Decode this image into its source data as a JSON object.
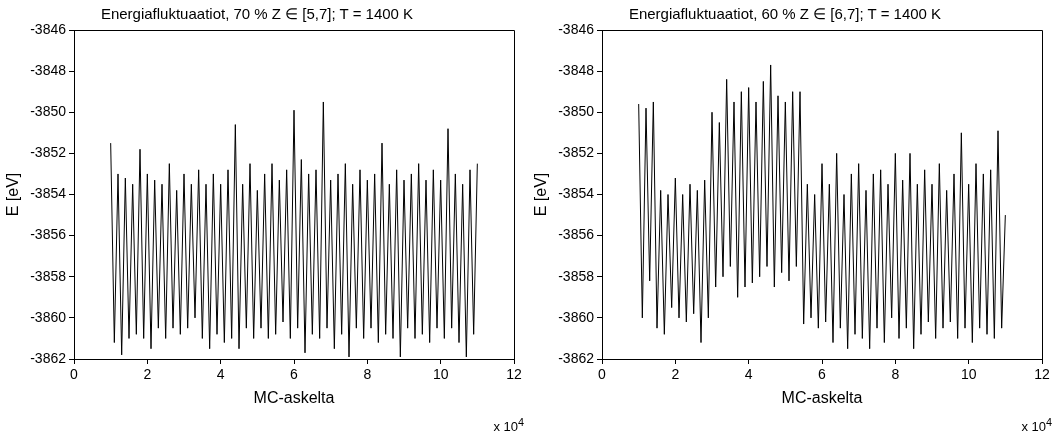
{
  "chart_data": [
    {
      "type": "line",
      "title": "Energiafluktuaatiot, 70 % Z ∈ [5,7]; T = 1400 K",
      "xlabel": "MC-askelta",
      "ylabel": "E [eV]",
      "annotations": [
        "x 10$^{4}$"
      ],
      "xlim": [
        0,
        12
      ],
      "xticks": [
        0,
        2,
        4,
        6,
        8,
        10,
        12
      ],
      "ylim": [
        -3862,
        -3846
      ],
      "yticks": [
        -3862,
        -3860,
        -3858,
        -3856,
        -3854,
        -3852,
        -3850,
        -3848,
        -3846
      ],
      "grid": false,
      "legend": false,
      "series": [
        {
          "color": "#000000",
          "x": [
            1.0,
            1.1,
            1.2,
            1.3,
            1.4,
            1.5,
            1.6,
            1.7,
            1.8,
            1.9,
            2.0,
            2.1,
            2.2,
            2.3,
            2.4,
            2.5,
            2.6,
            2.7,
            2.8,
            2.9,
            3.0,
            3.1,
            3.2,
            3.3,
            3.4,
            3.5,
            3.6,
            3.7,
            3.8,
            3.9,
            4.0,
            4.1,
            4.2,
            4.3,
            4.4,
            4.5,
            4.6,
            4.7,
            4.8,
            4.9,
            5.0,
            5.1,
            5.2,
            5.3,
            5.4,
            5.5,
            5.6,
            5.7,
            5.8,
            5.9,
            6.0,
            6.1,
            6.2,
            6.3,
            6.4,
            6.5,
            6.6,
            6.7,
            6.8,
            6.9,
            7.0,
            7.1,
            7.2,
            7.3,
            7.4,
            7.5,
            7.6,
            7.7,
            7.8,
            7.9,
            8.0,
            8.1,
            8.2,
            8.3,
            8.4,
            8.5,
            8.6,
            8.7,
            8.8,
            8.9,
            9.0,
            9.1,
            9.2,
            9.3,
            9.4,
            9.5,
            9.6,
            9.7,
            9.8,
            9.9,
            10.0,
            10.1,
            10.2,
            10.3,
            10.4,
            10.5,
            10.6,
            10.7,
            10.8,
            10.9,
            11.0
          ],
          "values": [
            -3851.5,
            -3861.2,
            -3853,
            -3861.8,
            -3853.2,
            -3861,
            -3853.5,
            -3860.8,
            -3851.8,
            -3861,
            -3853,
            -3861.5,
            -3853.3,
            -3860.5,
            -3853.5,
            -3861,
            -3852.5,
            -3860.5,
            -3853.8,
            -3860.8,
            -3853,
            -3860.5,
            -3853.5,
            -3860,
            -3852.8,
            -3861,
            -3853.5,
            -3861.5,
            -3853,
            -3860.8,
            -3853.5,
            -3861.2,
            -3852.8,
            -3861,
            -3850.6,
            -3861.5,
            -3853.5,
            -3860.5,
            -3852.5,
            -3861,
            -3853.8,
            -3860.5,
            -3853,
            -3861,
            -3852.5,
            -3860.8,
            -3853.3,
            -3860.2,
            -3852.8,
            -3861,
            -3849.9,
            -3860.5,
            -3852.3,
            -3861.7,
            -3853,
            -3860.8,
            -3852.8,
            -3861,
            -3849.5,
            -3860.5,
            -3853.3,
            -3861.5,
            -3853,
            -3860.8,
            -3852.5,
            -3861.9,
            -3853.5,
            -3860.5,
            -3852.8,
            -3861,
            -3853.3,
            -3860.5,
            -3853,
            -3861.2,
            -3851.5,
            -3860.8,
            -3853.5,
            -3861,
            -3852.8,
            -3861.9,
            -3853.3,
            -3860.5,
            -3853,
            -3861,
            -3852.5,
            -3860.8,
            -3853.3,
            -3861.2,
            -3852.8,
            -3860.5,
            -3853.3,
            -3861,
            -3850.8,
            -3860.5,
            -3853,
            -3861.2,
            -3853.5,
            -3861.9,
            -3852.8,
            -3860.8,
            -3852.5
          ]
        }
      ]
    },
    {
      "type": "line",
      "title": "Energiafluktuaatiot, 60 % Z ∈ [6,7]; T = 1400 K",
      "xlabel": "MC-askelta",
      "ylabel": "E [eV]",
      "annotations": [
        "x 10$^{4}$"
      ],
      "xlim": [
        0,
        12
      ],
      "xticks": [
        0,
        2,
        4,
        6,
        8,
        10,
        12
      ],
      "ylim": [
        -3862,
        -3846
      ],
      "yticks": [
        -3862,
        -3860,
        -3858,
        -3856,
        -3854,
        -3852,
        -3850,
        -3848,
        -3846
      ],
      "grid": false,
      "legend": false,
      "series": [
        {
          "color": "#000000",
          "x": [
            1.0,
            1.1,
            1.2,
            1.3,
            1.4,
            1.5,
            1.6,
            1.7,
            1.8,
            1.9,
            2.0,
            2.1,
            2.2,
            2.3,
            2.4,
            2.5,
            2.6,
            2.7,
            2.8,
            2.9,
            3.0,
            3.1,
            3.2,
            3.3,
            3.4,
            3.5,
            3.6,
            3.7,
            3.8,
            3.9,
            4.0,
            4.1,
            4.2,
            4.3,
            4.4,
            4.5,
            4.6,
            4.7,
            4.8,
            4.9,
            5.0,
            5.1,
            5.2,
            5.3,
            5.4,
            5.5,
            5.6,
            5.7,
            5.8,
            5.9,
            6.0,
            6.1,
            6.2,
            6.3,
            6.4,
            6.5,
            6.6,
            6.7,
            6.8,
            6.9,
            7.0,
            7.1,
            7.2,
            7.3,
            7.4,
            7.5,
            7.6,
            7.7,
            7.8,
            7.9,
            8.0,
            8.1,
            8.2,
            8.3,
            8.4,
            8.5,
            8.6,
            8.7,
            8.8,
            8.9,
            9.0,
            9.1,
            9.2,
            9.3,
            9.4,
            9.5,
            9.6,
            9.7,
            9.8,
            9.9,
            10.0,
            10.1,
            10.2,
            10.3,
            10.4,
            10.5,
            10.6,
            10.7,
            10.8,
            10.9,
            11.0
          ],
          "values": [
            -3849.6,
            -3860,
            -3849.8,
            -3858.2,
            -3849.5,
            -3860.5,
            -3853.8,
            -3860.8,
            -3854,
            -3859.5,
            -3853.2,
            -3860,
            -3854,
            -3860.2,
            -3853.5,
            -3859.8,
            -3853.8,
            -3861.2,
            -3853.3,
            -3860,
            -3850,
            -3858.5,
            -3850.5,
            -3858,
            -3848.4,
            -3857.5,
            -3849.5,
            -3859,
            -3849,
            -3858.5,
            -3848.8,
            -3858.3,
            -3849.5,
            -3858,
            -3848.5,
            -3857.5,
            -3847.7,
            -3858.5,
            -3849.2,
            -3857.8,
            -3849.5,
            -3858.2,
            -3849,
            -3857.5,
            -3849,
            -3860.3,
            -3853.5,
            -3860,
            -3854,
            -3860.5,
            -3852.5,
            -3860.2,
            -3853.5,
            -3861.2,
            -3852,
            -3860.5,
            -3854,
            -3861.5,
            -3853,
            -3860.8,
            -3852.5,
            -3861,
            -3853.8,
            -3861.5,
            -3853,
            -3860.5,
            -3852.8,
            -3861.2,
            -3853.5,
            -3860,
            -3852,
            -3861,
            -3853.3,
            -3860.5,
            -3852,
            -3861.5,
            -3853.5,
            -3860.8,
            -3852.8,
            -3860.2,
            -3853.5,
            -3861,
            -3852.5,
            -3860.5,
            -3853.8,
            -3860.2,
            -3853,
            -3861,
            -3851,
            -3860.5,
            -3853.5,
            -3861.2,
            -3852.5,
            -3860.5,
            -3853,
            -3860.8,
            -3852.8,
            -3861,
            -3850.9,
            -3860.5,
            -3855
          ]
        }
      ]
    }
  ]
}
